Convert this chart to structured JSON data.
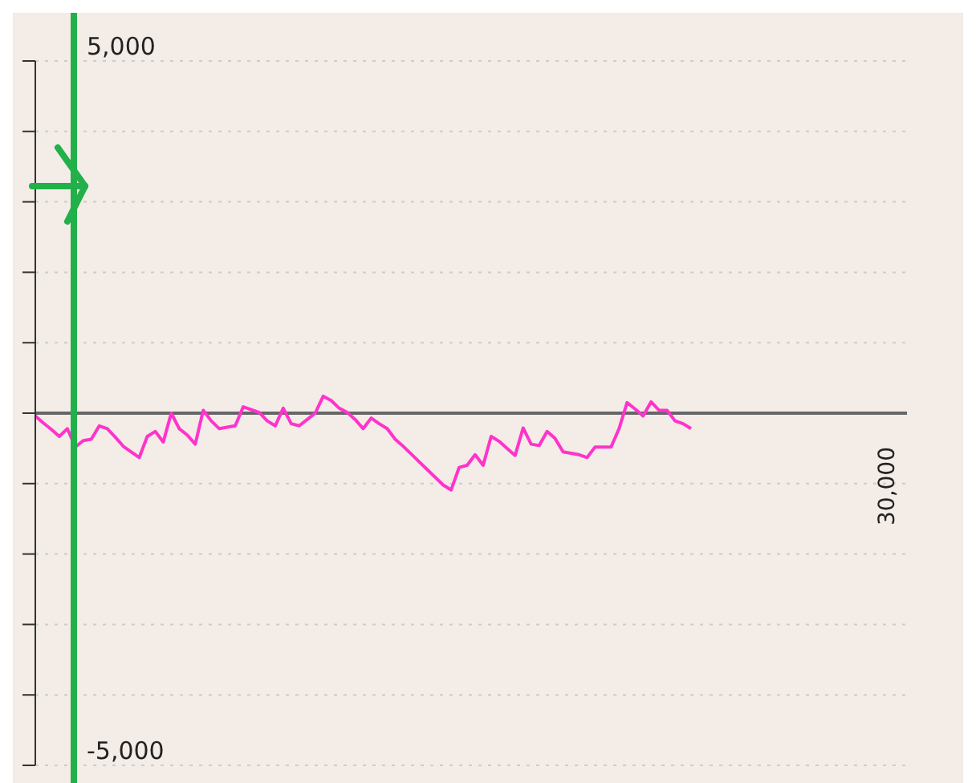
{
  "chart_data": {
    "type": "line",
    "categories": [
      null,
      null,
      null,
      null,
      null,
      null,
      null,
      null,
      null,
      null,
      null,
      null,
      null,
      null,
      null,
      null,
      null,
      null,
      null,
      null,
      null,
      null,
      null,
      null,
      null,
      null,
      null,
      null,
      null,
      null,
      null,
      null,
      null,
      null,
      null,
      null,
      null,
      null,
      null,
      null,
      null,
      null,
      null,
      null,
      null,
      null,
      null,
      null,
      null,
      null,
      null,
      null,
      null,
      null,
      null,
      null,
      null,
      null,
      null,
      null,
      null,
      null,
      null,
      null,
      null,
      null,
      null,
      null,
      null,
      null,
      null,
      null,
      null,
      null,
      null,
      null,
      null,
      null,
      null,
      null,
      null,
      null,
      null,
      null,
      null,
      null,
      null,
      null,
      null,
      null,
      null,
      null,
      null,
      null,
      null,
      null,
      null,
      null,
      null,
      null,
      null,
      null,
      null,
      null,
      null,
      null,
      null,
      null,
      null,
      null
    ],
    "series": [
      {
        "color": "#ff33cc",
        "values": [
          -40,
          -140,
          -230,
          -330,
          -220,
          -480,
          -390,
          -370,
          -180,
          -220,
          -340,
          -470,
          -550,
          -630,
          -330,
          -260,
          -410,
          0,
          -220,
          -310,
          -440,
          40,
          -110,
          -220,
          -200,
          -180,
          90,
          50,
          10,
          -110,
          -180,
          70,
          -150,
          -180,
          -90,
          0,
          240,
          180,
          70,
          10,
          -90,
          -220,
          -70,
          -150,
          -220,
          -370,
          -470,
          -580,
          -690,
          -800,
          -910,
          -1020,
          -1090,
          -770,
          -740,
          -590,
          -740,
          -330,
          -400,
          -500,
          -600,
          -210,
          -440,
          -460,
          -260,
          -360,
          -550,
          -570,
          -590,
          -630,
          -480,
          -480,
          -480,
          -220,
          150,
          60,
          -40,
          160,
          40,
          40,
          -110,
          -150,
          -220,
          null,
          null,
          null,
          null,
          null,
          null,
          null,
          null,
          null,
          null,
          null,
          null,
          null,
          null,
          null,
          null,
          null,
          null,
          null,
          null,
          null,
          null,
          null,
          null,
          null,
          null,
          null
        ]
      }
    ],
    "ylim": [
      -5000,
      5000
    ],
    "yticks": [
      {
        "value": 5000,
        "label": "5,000"
      },
      {
        "value": 4000,
        "label": null
      },
      {
        "value": 3000,
        "label": null
      },
      {
        "value": 2000,
        "label": null
      },
      {
        "value": 1000,
        "label": null
      },
      {
        "value": 0,
        "label": null
      },
      {
        "value": -1000,
        "label": null
      },
      {
        "value": -2000,
        "label": null
      },
      {
        "value": -3000,
        "label": null
      },
      {
        "value": -4000,
        "label": null
      },
      {
        "value": -5000,
        "label": "-5,000"
      }
    ],
    "tick_labels": "y",
    "grid": "y",
    "marker": "none",
    "line_style": "solid",
    "annotations": [
      "30,000"
    ],
    "ref_lines": [
      {
        "axis": "y",
        "value": 0,
        "color": "#666666"
      }
    ]
  }
}
